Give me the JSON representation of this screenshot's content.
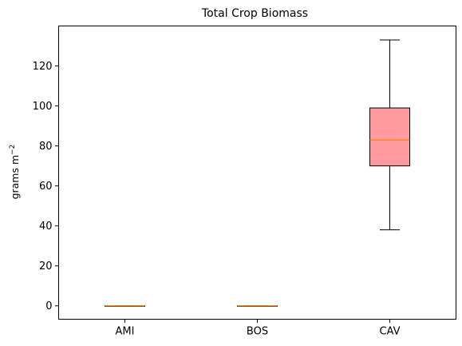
{
  "chart_data": {
    "type": "boxplot",
    "title": "Total Crop Biomass",
    "xlabel": "",
    "ylabel_main": "grams m",
    "ylabel_sup": "−2",
    "ylim": [
      -6.7,
      140
    ],
    "yticks": [
      0,
      20,
      40,
      60,
      80,
      100,
      120
    ],
    "categories": [
      "AMI",
      "BOS",
      "CAV"
    ],
    "boxes": [
      {
        "label": "AMI",
        "whisker_low": 0,
        "q1": 0,
        "median": 0,
        "q3": 0,
        "whisker_high": 0
      },
      {
        "label": "BOS",
        "whisker_low": 0,
        "q1": 0,
        "median": 0,
        "q3": 0,
        "whisker_high": 0
      },
      {
        "label": "CAV",
        "whisker_low": 38,
        "q1": 70,
        "median": 83,
        "q3": 99,
        "whisker_high": 133
      }
    ],
    "colors": {
      "box_fill": "#ff9a9e",
      "median": "#ff7f0e",
      "whisker": "#000000"
    },
    "grid": false
  }
}
